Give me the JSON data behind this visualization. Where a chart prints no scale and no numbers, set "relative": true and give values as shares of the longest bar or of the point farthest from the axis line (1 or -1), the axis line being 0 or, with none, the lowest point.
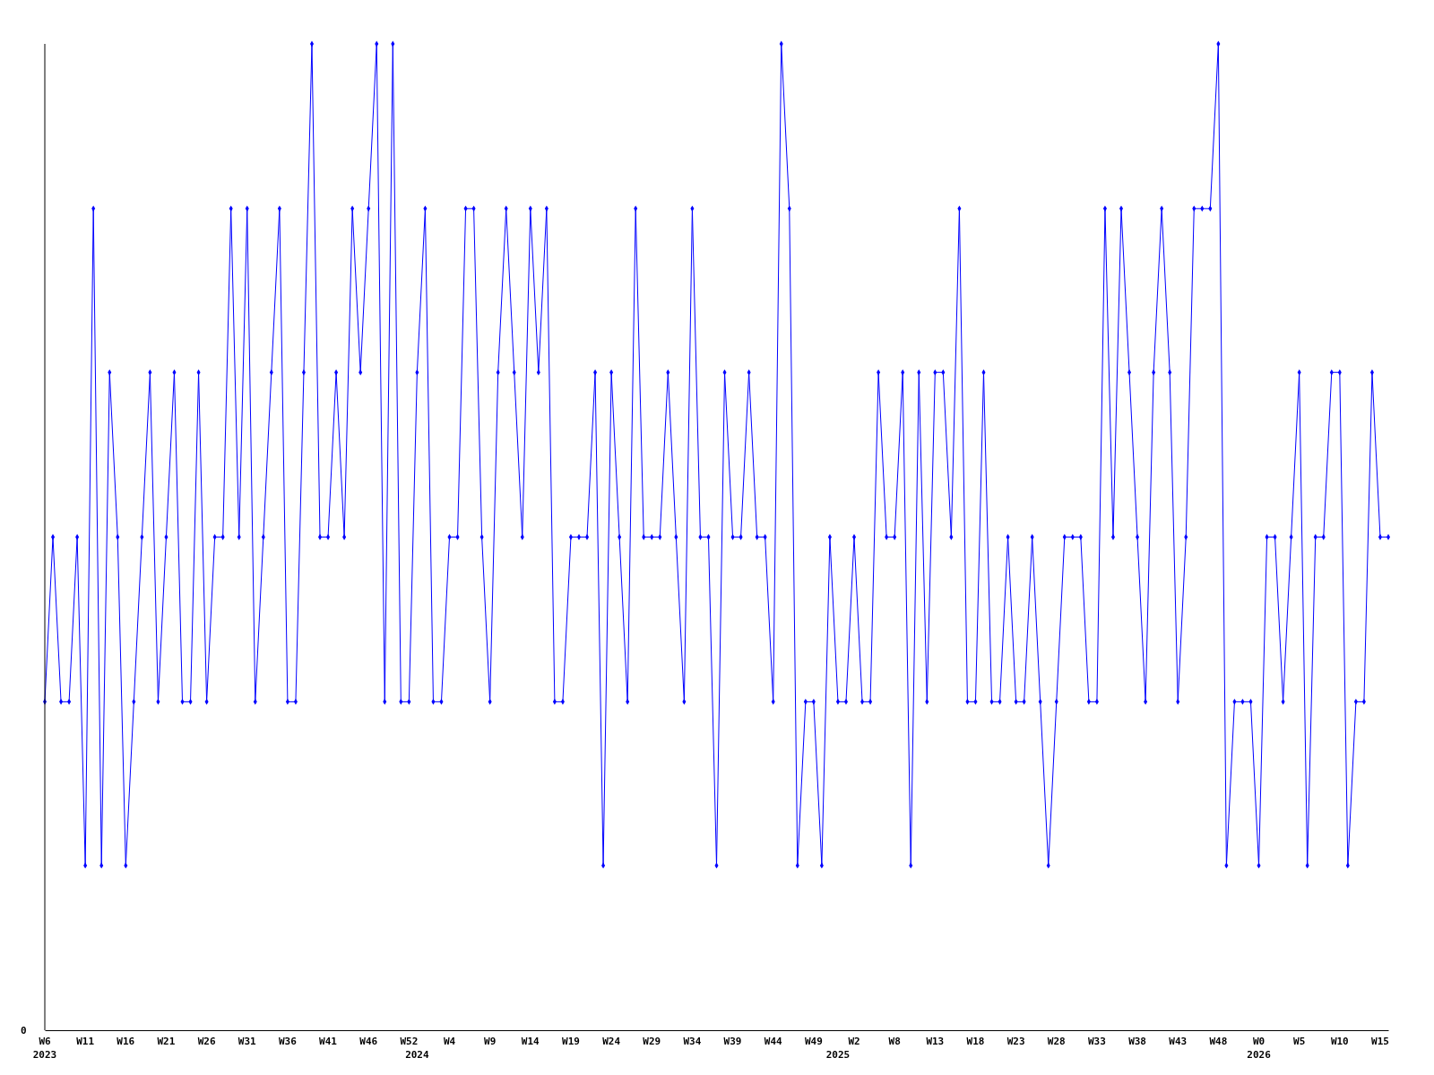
{
  "chart_data": {
    "type": "line",
    "relative": true,
    "color": "#0000ff",
    "marker": "diamond",
    "line_style": "solid",
    "categories": [
      "W6\n2023",
      null,
      null,
      null,
      null,
      "W11",
      null,
      null,
      null,
      null,
      "W16",
      null,
      null,
      null,
      null,
      "W21",
      null,
      null,
      null,
      null,
      "W26",
      null,
      null,
      null,
      null,
      "W31",
      null,
      null,
      null,
      null,
      "W36",
      null,
      null,
      null,
      null,
      "W41",
      null,
      null,
      null,
      null,
      "W46",
      null,
      null,
      null,
      null,
      "W52",
      "\n2024",
      null,
      null,
      null,
      "W4",
      null,
      null,
      null,
      null,
      "W9",
      null,
      null,
      null,
      null,
      "W14",
      null,
      null,
      null,
      null,
      "W19",
      null,
      null,
      null,
      null,
      "W24",
      null,
      null,
      null,
      null,
      "W29",
      null,
      null,
      null,
      null,
      "W34",
      null,
      null,
      null,
      null,
      "W39",
      null,
      null,
      null,
      null,
      "W44",
      null,
      null,
      null,
      null,
      "W49",
      null,
      null,
      "\n2025",
      null,
      "W2",
      null,
      null,
      null,
      null,
      "W8",
      null,
      null,
      null,
      null,
      "W13",
      null,
      null,
      null,
      null,
      "W18",
      null,
      null,
      null,
      null,
      "W23",
      null,
      null,
      null,
      null,
      "W28",
      null,
      null,
      null,
      null,
      "W33",
      null,
      null,
      null,
      null,
      "W38",
      null,
      null,
      null,
      null,
      "W43",
      null,
      null,
      null,
      null,
      "W48",
      null,
      null,
      null,
      null,
      "W0\n2026",
      null,
      null,
      null,
      null,
      "W5",
      null,
      null,
      null,
      null,
      "W10",
      null,
      null,
      null,
      null,
      "W15",
      null
    ],
    "values": [
      0.333,
      0.5,
      0.333,
      0.333,
      0.5,
      0.167,
      0.833,
      0.167,
      0.667,
      0.5,
      0.167,
      0.333,
      0.5,
      0.667,
      0.333,
      0.5,
      0.667,
      0.333,
      0.333,
      0.667,
      0.333,
      0.5,
      0.5,
      0.833,
      0.5,
      0.833,
      0.333,
      0.5,
      0.667,
      0.833,
      0.333,
      0.333,
      0.667,
      1,
      0.5,
      0.5,
      0.667,
      0.5,
      0.833,
      0.667,
      0.833,
      1,
      0.333,
      1,
      0.333,
      0.333,
      0.667,
      0.833,
      0.333,
      0.333,
      0.5,
      0.5,
      0.833,
      0.833,
      0.5,
      0.333,
      0.667,
      0.833,
      0.667,
      0.5,
      0.833,
      0.667,
      0.833,
      0.333,
      0.333,
      0.5,
      0.5,
      0.5,
      0.667,
      0.167,
      0.667,
      0.5,
      0.333,
      0.833,
      0.5,
      0.5,
      0.5,
      0.667,
      0.5,
      0.333,
      0.833,
      0.5,
      0.5,
      0.167,
      0.667,
      0.5,
      0.5,
      0.667,
      0.5,
      0.5,
      0.333,
      1,
      0.833,
      0.167,
      0.333,
      0.333,
      0.167,
      0.5,
      0.333,
      0.333,
      0.5,
      0.333,
      0.333,
      0.667,
      0.5,
      0.5,
      0.667,
      0.167,
      0.667,
      0.333,
      0.667,
      0.667,
      0.5,
      0.833,
      0.333,
      0.333,
      0.667,
      0.333,
      0.333,
      0.5,
      0.333,
      0.333,
      0.5,
      0.333,
      0.167,
      0.333,
      0.5,
      0.5,
      0.5,
      0.333,
      0.333,
      0.833,
      0.5,
      0.833,
      0.667,
      0.5,
      0.333,
      0.667,
      0.833,
      0.667,
      0.333,
      0.5,
      0.833,
      0.833,
      0.833,
      1,
      0.167,
      0.333,
      0.333,
      0.333,
      0.167,
      0.5,
      0.5,
      0.333,
      0.5,
      0.667,
      0.167,
      0.5,
      0.5,
      0.667,
      0.667,
      0.167,
      0.333,
      0.333,
      0.667,
      0.5,
      0.5
    ],
    "annotations": [
      "0"
    ]
  }
}
